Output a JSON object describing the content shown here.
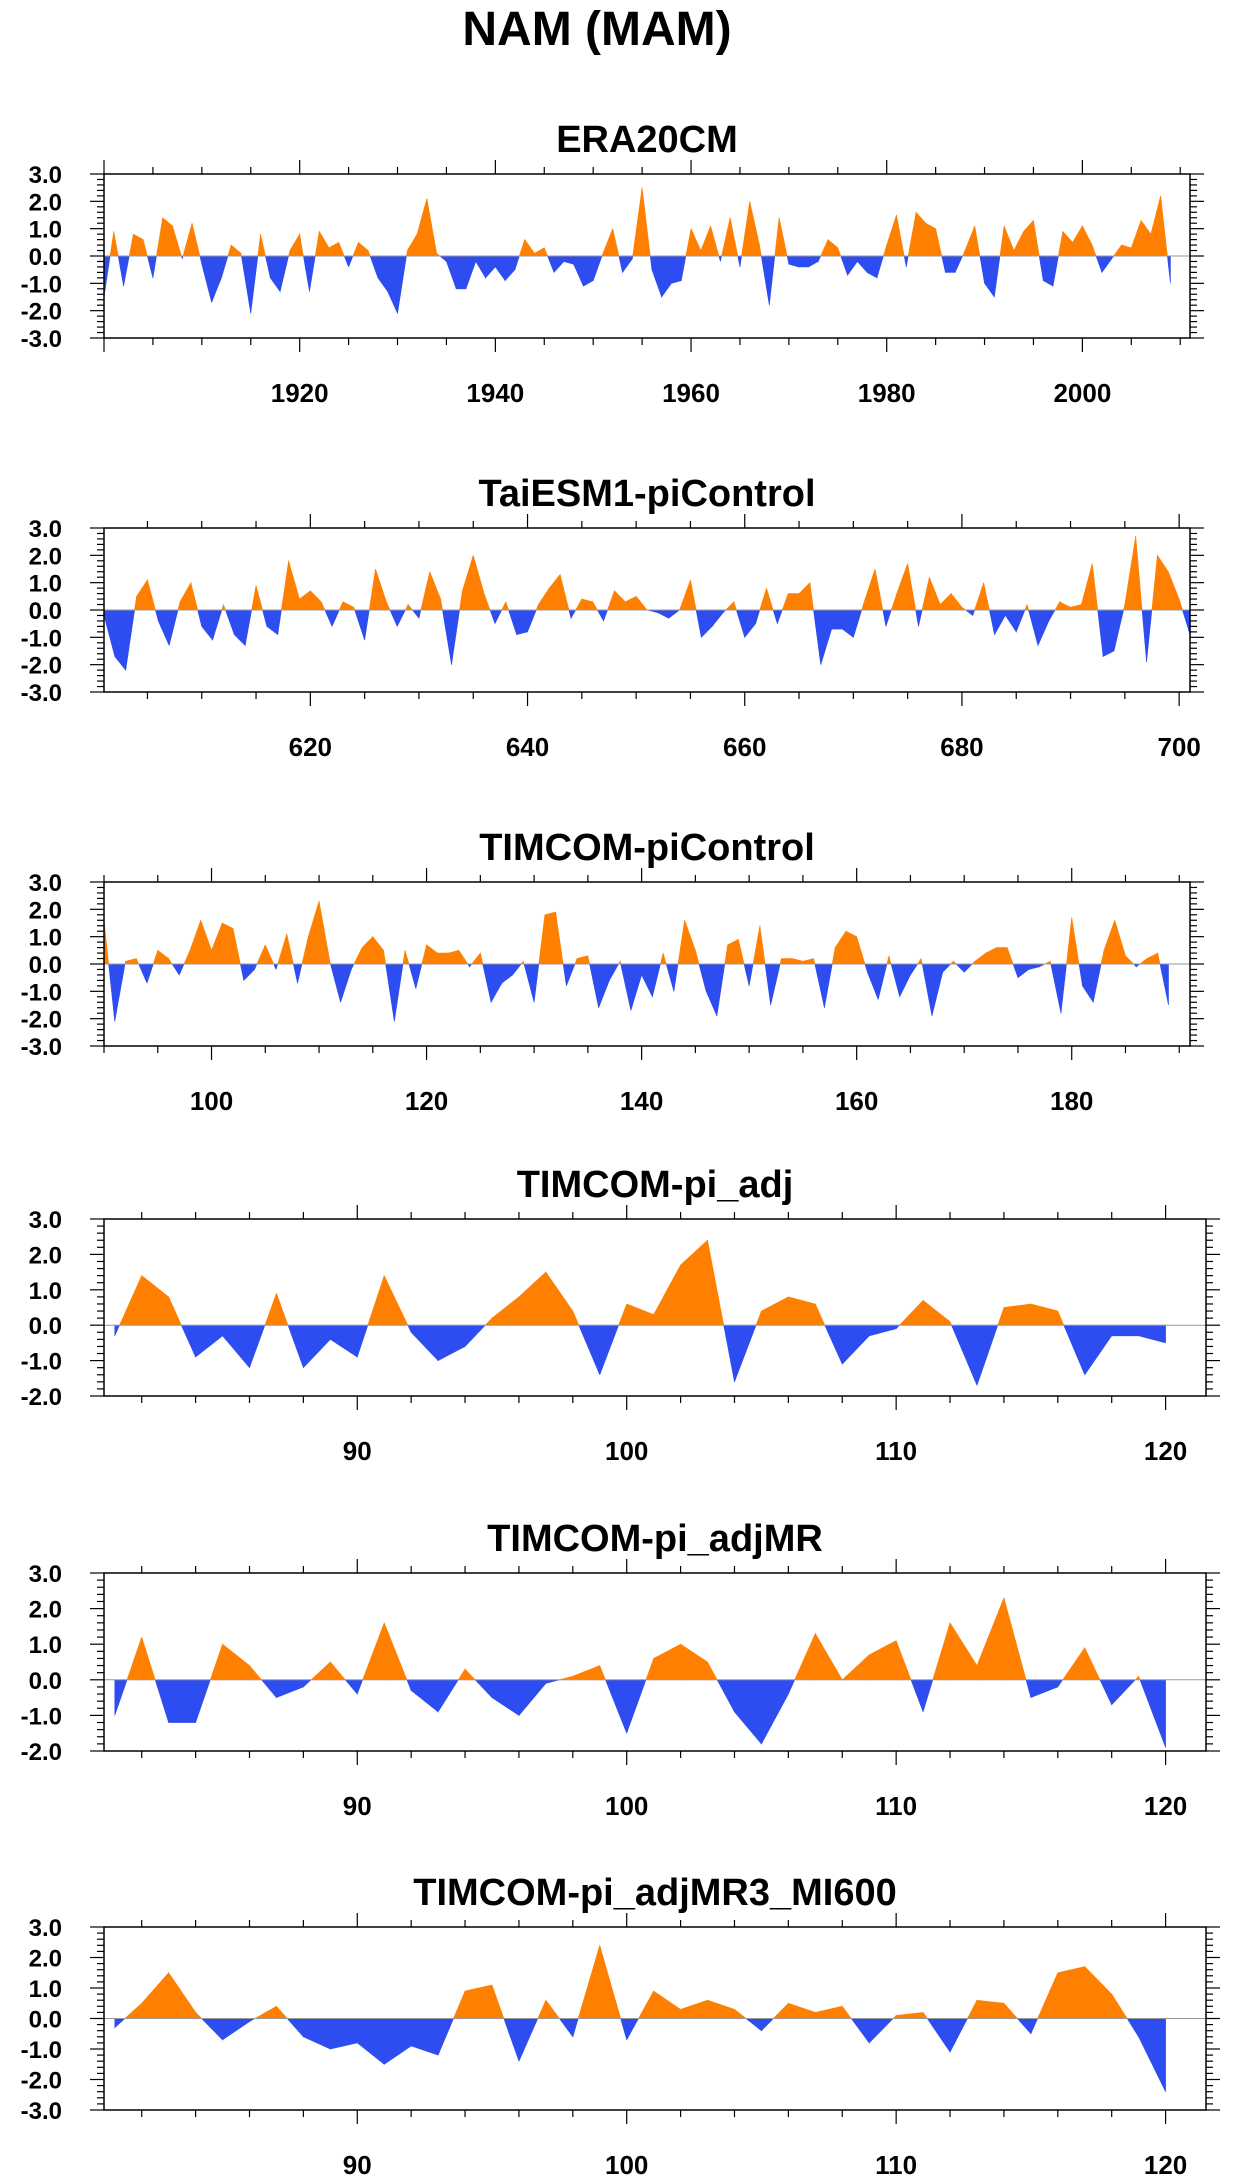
{
  "figure": {
    "title": "NAM (MAM)",
    "colors": {
      "positive": "#ff8000",
      "negative": "#2e4df0",
      "axis": "#000000",
      "zero_line": "#999999"
    }
  },
  "chart_data": [
    {
      "type": "area",
      "title": "ERA20CM",
      "xlabel": "",
      "ylabel": "",
      "xlim": [
        1900,
        2011
      ],
      "ylim": [
        -3,
        3
      ],
      "yticks": [
        -3,
        -2,
        -1,
        0,
        1,
        2,
        3
      ],
      "ytick_labels": [
        "-3.0",
        "-2.0",
        "-1.0",
        "0.0",
        "1.0",
        "2.0",
        "3.0"
      ],
      "xticks": [
        1920,
        1940,
        1960,
        1980,
        2000
      ],
      "xtick_labels": [
        "1920",
        "1940",
        "1960",
        "1980",
        "2000"
      ],
      "x_start": 1900,
      "values": [
        -1.5,
        0.9,
        -1.1,
        0.8,
        0.6,
        -0.8,
        1.4,
        1.1,
        -0.1,
        1.2,
        -0.3,
        -1.7,
        -0.8,
        0.4,
        0.1,
        -2.1,
        0.8,
        -0.8,
        -1.3,
        0.2,
        0.8,
        -1.3,
        0.9,
        0.3,
        0.5,
        -0.4,
        0.5,
        0.2,
        -0.8,
        -1.3,
        -2.1,
        0.2,
        0.8,
        2.1,
        0.1,
        -0.2,
        -1.2,
        -1.2,
        -0.2,
        -0.8,
        -0.4,
        -0.9,
        -0.5,
        0.6,
        0.1,
        0.3,
        -0.6,
        -0.2,
        -0.3,
        -1.1,
        -0.9,
        0.1,
        1.0,
        -0.6,
        -0.1,
        2.5,
        -0.5,
        -1.5,
        -1.0,
        -0.9,
        1.0,
        0.2,
        1.1,
        -0.2,
        1.4,
        -0.4,
        2.0,
        0.4,
        -1.8,
        1.4,
        -0.3,
        -0.4,
        -0.4,
        -0.2,
        0.6,
        0.3,
        -0.7,
        -0.2,
        -0.6,
        -0.8,
        0.4,
        1.5,
        -0.4,
        1.6,
        1.2,
        1.0,
        -0.6,
        -0.6,
        0.2,
        1.1,
        -1.0,
        -1.5,
        1.1,
        0.2,
        0.9,
        1.3,
        -0.9,
        -1.1,
        0.9,
        0.5,
        1.1,
        0.4,
        -0.6,
        -0.1,
        0.4,
        0.3,
        1.3,
        0.8,
        2.2,
        -1.0
      ]
    },
    {
      "type": "area",
      "title": "TaiESM1-piControl",
      "xlabel": "",
      "ylabel": "",
      "xlim": [
        601,
        701
      ],
      "ylim": [
        -3,
        3
      ],
      "yticks": [
        -3,
        -2,
        -1,
        0,
        1,
        2,
        3
      ],
      "ytick_labels": [
        "-3.0",
        "-2.0",
        "-1.0",
        "0.0",
        "1.0",
        "2.0",
        "3.0"
      ],
      "xticks": [
        620,
        640,
        660,
        680,
        700
      ],
      "xtick_labels": [
        "620",
        "640",
        "660",
        "680",
        "700"
      ],
      "x_start": 601,
      "values": [
        -0.2,
        -1.7,
        -2.2,
        0.5,
        1.1,
        -0.4,
        -1.3,
        0.3,
        1.0,
        -0.6,
        -1.1,
        0.2,
        -0.9,
        -1.3,
        0.9,
        -0.6,
        -0.9,
        1.8,
        0.4,
        0.7,
        0.3,
        -0.6,
        0.3,
        0.1,
        -1.1,
        1.5,
        0.3,
        -0.6,
        0.2,
        -0.3,
        1.4,
        0.4,
        -2.0,
        0.7,
        2.0,
        0.6,
        -0.5,
        0.3,
        -0.9,
        -0.8,
        0.2,
        0.8,
        1.3,
        -0.3,
        0.4,
        0.3,
        -0.4,
        0.7,
        0.3,
        0.5,
        0.0,
        -0.1,
        -0.3,
        0.0,
        1.1,
        -1.0,
        -0.6,
        -0.1,
        0.3,
        -1.0,
        -0.5,
        0.8,
        -0.5,
        0.6,
        0.6,
        1.0,
        -2.0,
        -0.7,
        -0.7,
        -1.0,
        0.3,
        1.5,
        -0.6,
        0.6,
        1.7,
        -0.6,
        1.2,
        0.2,
        0.6,
        0.1,
        -0.2,
        1.0,
        -0.9,
        -0.2,
        -0.8,
        0.2,
        -1.3,
        -0.4,
        0.3,
        0.1,
        0.2,
        1.7,
        -1.7,
        -1.5,
        0.2,
        2.7,
        -1.9,
        2.0,
        1.4,
        0.4,
        -0.9
      ]
    },
    {
      "type": "area",
      "title": "TIMCOM-piControl",
      "xlabel": "",
      "ylabel": "",
      "xlim": [
        90,
        191
      ],
      "ylim": [
        -3,
        3
      ],
      "yticks": [
        -3,
        -2,
        -1,
        0,
        1,
        2,
        3
      ],
      "ytick_labels": [
        "-3.0",
        "-2.0",
        "-1.0",
        "0.0",
        "1.0",
        "2.0",
        "3.0"
      ],
      "xticks": [
        100,
        120,
        140,
        160,
        180
      ],
      "xtick_labels": [
        "100",
        "120",
        "140",
        "160",
        "180"
      ],
      "x_start": 90,
      "values": [
        1.6,
        -2.1,
        0.1,
        0.2,
        -0.7,
        0.5,
        0.2,
        -0.4,
        0.5,
        1.6,
        0.5,
        1.5,
        1.3,
        -0.6,
        -0.2,
        0.7,
        -0.2,
        1.1,
        -0.7,
        1.0,
        2.3,
        0.1,
        -1.4,
        -0.2,
        0.6,
        1.0,
        0.5,
        -2.1,
        0.5,
        -0.9,
        0.7,
        0.4,
        0.4,
        0.5,
        -0.1,
        0.4,
        -1.4,
        -0.7,
        -0.4,
        0.1,
        -1.4,
        1.8,
        1.9,
        -0.8,
        0.2,
        0.3,
        -1.6,
        -0.6,
        0.1,
        -1.7,
        -0.4,
        -1.2,
        0.4,
        -1.0,
        1.6,
        0.5,
        -1.0,
        -1.9,
        0.7,
        0.9,
        -0.8,
        1.4,
        -1.5,
        0.2,
        0.2,
        0.1,
        0.2,
        -1.6,
        0.6,
        1.2,
        1.0,
        -0.3,
        -1.3,
        0.3,
        -1.2,
        -0.4,
        0.2,
        -1.9,
        -0.3,
        0.1,
        -0.3,
        0.1,
        0.4,
        0.6,
        0.6,
        -0.5,
        -0.2,
        -0.1,
        0.1,
        -1.8,
        1.7,
        -0.8,
        -1.4,
        0.5,
        1.6,
        0.3,
        -0.1,
        0.2,
        0.4,
        -1.5
      ]
    },
    {
      "type": "area",
      "title": "TIMCOM-pi_adj",
      "xlabel": "",
      "ylabel": "",
      "xlim": [
        80.6,
        121.5
      ],
      "ylim": [
        -2,
        3
      ],
      "yticks": [
        -2,
        -1,
        0,
        1,
        2,
        3
      ],
      "ytick_labels": [
        "-2.0",
        "-1.0",
        "0.0",
        "1.0",
        "2.0",
        "3.0"
      ],
      "xticks": [
        90,
        100,
        110,
        120
      ],
      "xtick_labels": [
        "90",
        "100",
        "110",
        "120"
      ],
      "x_start": 81,
      "values": [
        -0.3,
        1.4,
        0.8,
        -0.9,
        -0.3,
        -1.2,
        0.9,
        -1.2,
        -0.4,
        -0.9,
        1.4,
        -0.2,
        -1.0,
        -0.6,
        0.2,
        0.8,
        1.5,
        0.4,
        -1.4,
        0.6,
        0.3,
        1.7,
        2.4,
        -1.6,
        0.4,
        0.8,
        0.6,
        -1.1,
        -0.3,
        -0.1,
        0.7,
        0.1,
        -1.7,
        0.5,
        0.6,
        0.4,
        -1.4,
        -0.3,
        -0.3,
        -0.5
      ]
    },
    {
      "type": "area",
      "title": "TIMCOM-pi_adjMR",
      "xlabel": "",
      "ylabel": "",
      "xlim": [
        80.6,
        121.5
      ],
      "ylim": [
        -2,
        3
      ],
      "yticks": [
        -2,
        -1,
        0,
        1,
        2,
        3
      ],
      "ytick_labels": [
        "-2.0",
        "-1.0",
        "0.0",
        "1.0",
        "2.0",
        "3.0"
      ],
      "xticks": [
        90,
        100,
        110,
        120
      ],
      "xtick_labels": [
        "90",
        "100",
        "110",
        "120"
      ],
      "x_start": 81,
      "values": [
        -1.0,
        1.2,
        -1.2,
        -1.2,
        1.0,
        0.4,
        -0.5,
        -0.2,
        0.5,
        -0.4,
        1.6,
        -0.3,
        -0.9,
        0.3,
        -0.5,
        -1.0,
        -0.1,
        0.1,
        0.4,
        -1.5,
        0.6,
        1.0,
        0.5,
        -0.9,
        -1.8,
        -0.4,
        1.3,
        0.0,
        0.7,
        1.1,
        -0.9,
        1.6,
        0.4,
        2.3,
        -0.5,
        -0.2,
        0.9,
        -0.7,
        0.1,
        -1.9
      ]
    },
    {
      "type": "area",
      "title": "TIMCOM-pi_adjMR3_MI600",
      "xlabel": "",
      "ylabel": "",
      "xlim": [
        80.6,
        121.5
      ],
      "ylim": [
        -3,
        3
      ],
      "yticks": [
        -3,
        -2,
        -1,
        0,
        1,
        2,
        3
      ],
      "ytick_labels": [
        "-3.0",
        "-2.0",
        "-1.0",
        "0.0",
        "1.0",
        "2.0",
        "3.0"
      ],
      "xticks": [
        90,
        100,
        110,
        120
      ],
      "xtick_labels": [
        "90",
        "100",
        "110",
        "120"
      ],
      "x_start": 81,
      "values": [
        -0.3,
        0.5,
        1.5,
        0.2,
        -0.7,
        -0.1,
        0.4,
        -0.6,
        -1.0,
        -0.8,
        -1.5,
        -0.9,
        -1.2,
        0.9,
        1.1,
        -1.4,
        0.6,
        -0.6,
        2.4,
        -0.7,
        0.9,
        0.3,
        0.6,
        0.3,
        -0.4,
        0.5,
        0.2,
        0.4,
        -0.8,
        0.1,
        0.2,
        -1.1,
        0.6,
        0.5,
        -0.5,
        1.5,
        1.7,
        0.8,
        -0.6,
        -2.4
      ]
    }
  ]
}
